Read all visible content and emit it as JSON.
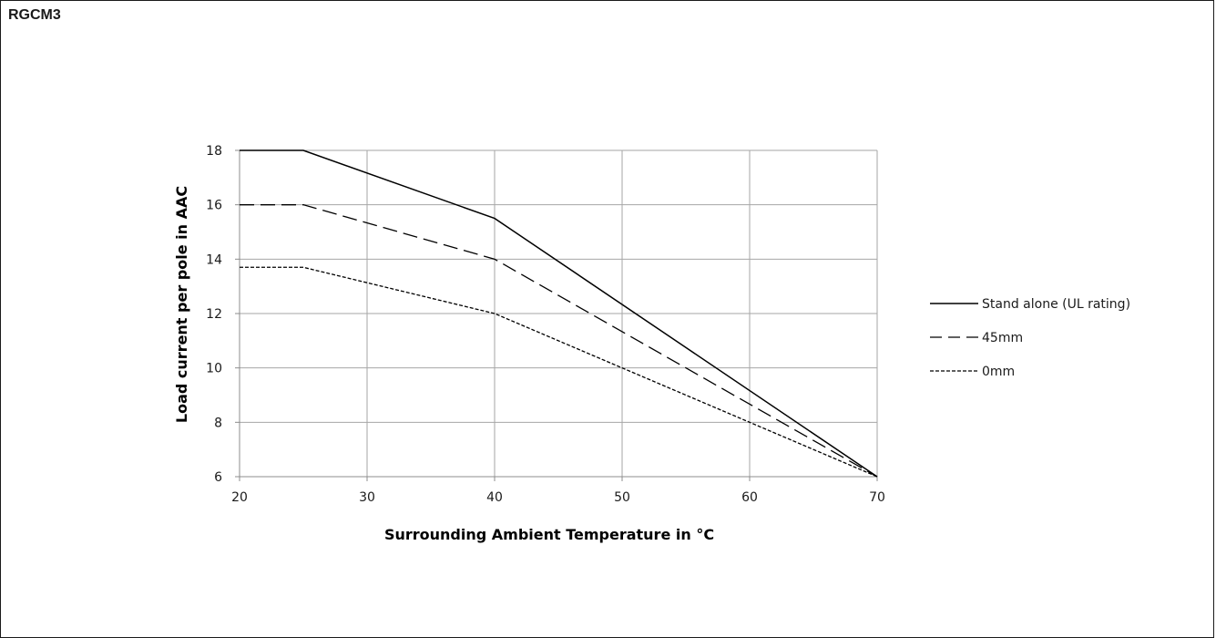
{
  "title": "RGCM3",
  "chart_data": {
    "type": "line",
    "title": "RGCM3",
    "xlabel": "Surrounding Ambient Temperature in °C",
    "ylabel": "Load current per pole in AAC",
    "xlim": [
      20,
      70
    ],
    "ylim": [
      6,
      18
    ],
    "xticks": [
      20,
      30,
      40,
      50,
      60,
      70
    ],
    "yticks": [
      6,
      8,
      10,
      12,
      14,
      16,
      18
    ],
    "grid": true,
    "legend_position": "right",
    "series": [
      {
        "name": "Stand alone (UL rating)",
        "style": "solid",
        "color": "#000000",
        "x": [
          20,
          25,
          40,
          70
        ],
        "y": [
          18,
          18,
          15.5,
          6
        ]
      },
      {
        "name": "45mm",
        "style": "dashed",
        "color": "#000000",
        "x": [
          20,
          25,
          40,
          70
        ],
        "y": [
          16,
          16,
          14,
          6
        ]
      },
      {
        "name": "0mm",
        "style": "dotted",
        "color": "#000000",
        "x": [
          20,
          25,
          40,
          70
        ],
        "y": [
          13.7,
          13.7,
          12,
          6
        ]
      }
    ]
  }
}
